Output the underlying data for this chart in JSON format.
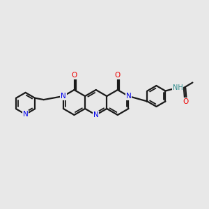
{
  "bg_color": "#e8e8e8",
  "bond_color": "#1a1a1a",
  "N_color": "#0000ee",
  "O_color": "#ee0000",
  "NH_color": "#2a8888",
  "lw": 1.6,
  "figsize": [
    3.0,
    3.0
  ],
  "dpi": 100,
  "xlim": [
    0,
    10
  ],
  "ylim": [
    1.5,
    6.5
  ]
}
